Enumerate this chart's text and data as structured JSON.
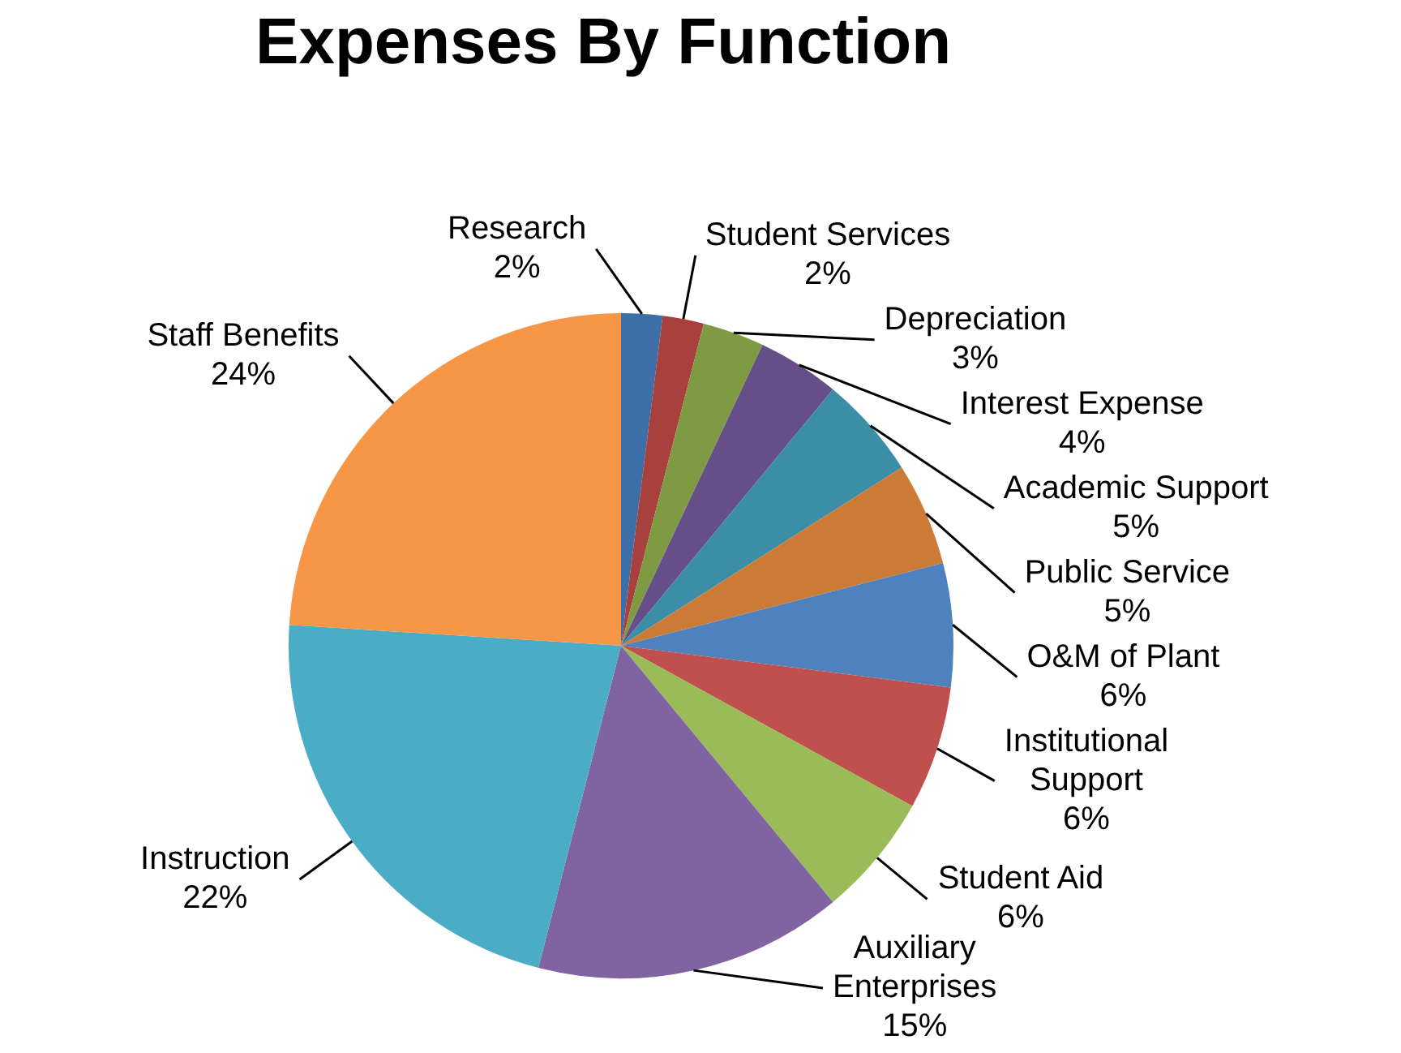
{
  "chart_data": {
    "type": "pie",
    "title": "Expenses By Function",
    "categories": [
      "Research",
      "Student Services",
      "Depreciation",
      "Interest Expense",
      "Academic Support",
      "Public Service",
      "O&M of Plant",
      "Institutional Support",
      "Student Aid",
      "Auxiliary Enterprises",
      "Instruction",
      "Staff Benefits"
    ],
    "values": [
      2,
      2,
      3,
      4,
      5,
      5,
      6,
      6,
      6,
      15,
      22,
      24
    ],
    "value_labels": [
      "2%",
      "2%",
      "3%",
      "4%",
      "5%",
      "5%",
      "6%",
      "6%",
      "6%",
      "15%",
      "22%",
      "24%"
    ],
    "colors": [
      "#3d6ea8",
      "#a8403d",
      "#7e9a43",
      "#664f88",
      "#3b8ea6",
      "#cc7b37",
      "#4f81bd",
      "#c0504d",
      "#9bbb59",
      "#8064a2",
      "#4bacc6",
      "#f79646"
    ],
    "legend": false
  }
}
